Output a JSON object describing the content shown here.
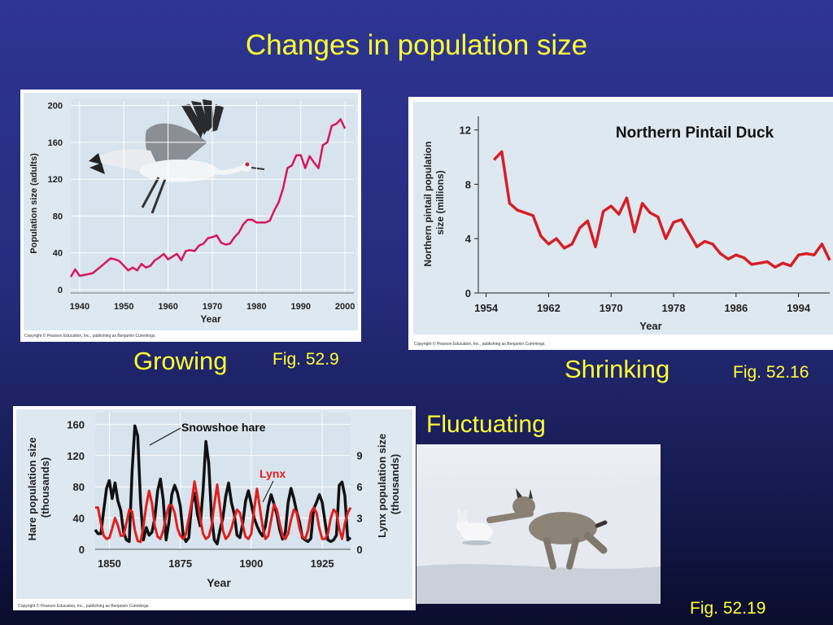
{
  "title": "Changes in population size",
  "captions": {
    "growing": "Growing",
    "growing_fig": "Fig. 52.9",
    "shrinking": "Shrinking",
    "shrinking_fig": "Fig. 52.16",
    "fluctuating": "Fluctuating",
    "fluctuating_fig": "Fig. 52.19"
  },
  "copyright": "Copyright © Pearson Education, Inc., publishing as Benjamin Cummings.",
  "colors": {
    "title": "#ffff33",
    "crane_line": "#d8155c",
    "pintail_line": "#d41f26",
    "hare_line": "#111111",
    "lynx_line": "#e0201c",
    "plot_bg": "#dde8f1"
  },
  "chart_data": [
    {
      "type": "line",
      "title": "",
      "xlabel": "Year",
      "ylabel": "Population size (adults)",
      "xlim": [
        1938,
        2002
      ],
      "ylim": [
        0,
        205
      ],
      "xticks": [
        1940,
        1950,
        1960,
        1970,
        1980,
        1990,
        2000
      ],
      "yticks": [
        0,
        40,
        80,
        120,
        160,
        200
      ],
      "grid": true,
      "x": [
        1938,
        1939,
        1940,
        1941,
        1942,
        1943,
        1944,
        1945,
        1946,
        1947,
        1948,
        1949,
        1950,
        1951,
        1952,
        1953,
        1954,
        1955,
        1956,
        1957,
        1958,
        1959,
        1960,
        1961,
        1962,
        1963,
        1964,
        1965,
        1966,
        1967,
        1968,
        1969,
        1970,
        1971,
        1972,
        1973,
        1974,
        1975,
        1976,
        1977,
        1978,
        1979,
        1980,
        1981,
        1982,
        1983,
        1984,
        1985,
        1986,
        1987,
        1988,
        1989,
        1990,
        1991,
        1992,
        1993,
        1994,
        1995,
        1996,
        1997,
        1998,
        1999,
        2000
      ],
      "series": [
        {
          "values": [
            14,
            22,
            15,
            16,
            17,
            18,
            22,
            26,
            30,
            34,
            33,
            31,
            26,
            21,
            24,
            21,
            28,
            24,
            26,
            32,
            35,
            39,
            33,
            36,
            39,
            32,
            42,
            43,
            42,
            48,
            50,
            56,
            57,
            59,
            51,
            49,
            50,
            57,
            62,
            71,
            76,
            76,
            73,
            73,
            73,
            75,
            86,
            95,
            110,
            132,
            135,
            146,
            146,
            132,
            145,
            138,
            132,
            157,
            160,
            178,
            180,
            185,
            175
          ]
        }
      ]
    },
    {
      "type": "line",
      "title": "Northern Pintail Duck",
      "xlabel": "Year",
      "ylabel": "Northern pintail population size (millions)",
      "xlim": [
        1953,
        1998
      ],
      "ylim": [
        0,
        13
      ],
      "xticks": [
        1954,
        1962,
        1970,
        1978,
        1986,
        1994
      ],
      "yticks": [
        0,
        4,
        8,
        12
      ],
      "grid": false,
      "x": [
        1955,
        1956,
        1957,
        1958,
        1959,
        1960,
        1961,
        1962,
        1963,
        1964,
        1965,
        1966,
        1967,
        1968,
        1969,
        1970,
        1971,
        1972,
        1973,
        1974,
        1975,
        1976,
        1977,
        1978,
        1979,
        1980,
        1981,
        1982,
        1983,
        1984,
        1985,
        1986,
        1987,
        1988,
        1989,
        1990,
        1991,
        1992,
        1993,
        1994,
        1995,
        1996,
        1997,
        1998
      ],
      "series": [
        {
          "values": [
            9.8,
            10.4,
            6.6,
            6.1,
            5.9,
            5.7,
            4.2,
            3.6,
            4.0,
            3.3,
            3.6,
            4.8,
            5.3,
            3.4,
            6.0,
            6.4,
            5.8,
            7.0,
            4.5,
            6.6,
            5.9,
            5.6,
            4.0,
            5.2,
            5.4,
            4.4,
            3.4,
            3.8,
            3.6,
            2.9,
            2.5,
            2.8,
            2.6,
            2.1,
            2.2,
            2.3,
            1.9,
            2.2,
            2.0,
            2.8,
            2.9,
            2.8,
            3.6,
            2.4
          ]
        }
      ]
    },
    {
      "type": "line",
      "title": "",
      "xlabel": "Year",
      "ylabel": "Hare population size (thousands)",
      "y2label": "Lynx population size (thousands)",
      "xlim": [
        1845,
        1935
      ],
      "ylim": [
        0,
        175
      ],
      "y2lim": [
        0,
        13.1
      ],
      "xticks": [
        1850,
        1875,
        1900,
        1925
      ],
      "yticks": [
        0,
        40,
        80,
        120,
        160
      ],
      "y2ticks": [
        0,
        3,
        6,
        9
      ],
      "grid": true,
      "annotations": [
        "Snowshoe hare",
        "Lynx"
      ],
      "x": [
        1845,
        1846,
        1847,
        1848,
        1849,
        1850,
        1851,
        1852,
        1853,
        1854,
        1855,
        1856,
        1857,
        1858,
        1859,
        1860,
        1861,
        1862,
        1863,
        1864,
        1865,
        1866,
        1867,
        1868,
        1869,
        1870,
        1871,
        1872,
        1873,
        1874,
        1875,
        1876,
        1877,
        1878,
        1879,
        1880,
        1881,
        1882,
        1883,
        1884,
        1885,
        1886,
        1887,
        1888,
        1889,
        1890,
        1891,
        1892,
        1893,
        1894,
        1895,
        1896,
        1897,
        1898,
        1899,
        1900,
        1901,
        1902,
        1903,
        1904,
        1905,
        1906,
        1907,
        1908,
        1909,
        1910,
        1911,
        1912,
        1913,
        1914,
        1915,
        1916,
        1917,
        1918,
        1919,
        1920,
        1921,
        1922,
        1923,
        1924,
        1925,
        1926,
        1927,
        1928,
        1929,
        1930,
        1931,
        1932,
        1933,
        1934,
        1935
      ],
      "series": [
        {
          "name": "Snowshoe hare",
          "values": [
            25,
            20,
            20,
            50,
            78,
            88,
            65,
            85,
            62,
            50,
            22,
            12,
            10,
            100,
            158,
            145,
            60,
            12,
            28,
            18,
            22,
            40,
            75,
            90,
            63,
            12,
            35,
            70,
            82,
            72,
            55,
            18,
            10,
            15,
            58,
            72,
            45,
            30,
            75,
            138,
            110,
            42,
            12,
            7,
            25,
            40,
            68,
            85,
            60,
            45,
            18,
            15,
            33,
            62,
            75,
            58,
            40,
            30,
            22,
            17,
            30,
            55,
            70,
            58,
            45,
            25,
            13,
            22,
            60,
            78,
            65,
            48,
            35,
            15,
            12,
            10,
            14,
            52,
            60,
            70,
            60,
            35,
            12,
            10,
            12,
            18,
            82,
            86,
            68,
            12,
            15
          ]
        },
        {
          "name": "Lynx",
          "values": [
            4.0,
            4.0,
            2.5,
            1.3,
            1.0,
            1.1,
            2.0,
            3.0,
            2.3,
            1.3,
            1.3,
            2.5,
            3.8,
            3.6,
            1.8,
            0.8,
            0.7,
            2.2,
            4.2,
            5.6,
            4.4,
            2.2,
            1.2,
            1.0,
            1.8,
            3.2,
            4.2,
            4.2,
            3.5,
            2.0,
            1.3,
            1.0,
            1.5,
            3.0,
            4.5,
            6.5,
            5.0,
            3.0,
            1.5,
            1.0,
            1.2,
            2.2,
            4.3,
            6.2,
            4.0,
            1.8,
            1.0,
            1.3,
            2.0,
            3.0,
            3.8,
            3.5,
            2.3,
            1.2,
            1.0,
            1.5,
            3.8,
            5.8,
            4.0,
            2.2,
            1.0,
            1.3,
            2.8,
            4.3,
            3.8,
            2.5,
            1.3,
            1.0,
            1.5,
            2.8,
            3.8,
            3.5,
            2.0,
            1.2,
            1.0,
            1.8,
            3.5,
            4.0,
            3.5,
            2.0,
            1.0,
            1.0,
            1.5,
            3.0,
            3.8,
            3.5,
            2.0,
            1.0,
            2.5,
            3.5,
            4.0
          ]
        }
      ]
    }
  ]
}
